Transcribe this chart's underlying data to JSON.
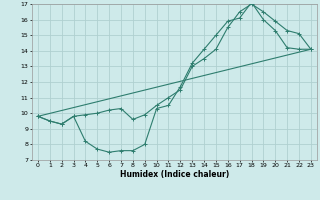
{
  "xlabel": "Humidex (Indice chaleur)",
  "bg_color": "#ceeaea",
  "grid_color": "#b0d0d0",
  "line_color": "#2e7d6e",
  "xlim": [
    -0.5,
    23.5
  ],
  "ylim": [
    7,
    17
  ],
  "xticks": [
    0,
    1,
    2,
    3,
    4,
    5,
    6,
    7,
    8,
    9,
    10,
    11,
    12,
    13,
    14,
    15,
    16,
    17,
    18,
    19,
    20,
    21,
    22,
    23
  ],
  "yticks": [
    7,
    8,
    9,
    10,
    11,
    12,
    13,
    14,
    15,
    16,
    17
  ],
  "line1_x": [
    0,
    1,
    2,
    3,
    4,
    5,
    6,
    7,
    8,
    9,
    10,
    11,
    12,
    13,
    14,
    15,
    16,
    17,
    18,
    19,
    20,
    21,
    22,
    23
  ],
  "line1_y": [
    9.8,
    9.5,
    9.3,
    9.8,
    8.2,
    7.7,
    7.5,
    7.6,
    7.6,
    8.0,
    10.3,
    10.5,
    11.7,
    13.2,
    14.1,
    15.0,
    15.9,
    16.1,
    17.1,
    16.0,
    15.3,
    14.2,
    14.1,
    14.1
  ],
  "line2_x": [
    0,
    1,
    2,
    3,
    4,
    5,
    6,
    7,
    8,
    9,
    10,
    11,
    12,
    13,
    14,
    15,
    16,
    17,
    18,
    19,
    20,
    21,
    22,
    23
  ],
  "line2_y": [
    9.8,
    9.5,
    9.3,
    9.8,
    9.9,
    10.0,
    10.2,
    10.3,
    9.6,
    9.9,
    10.5,
    11.0,
    11.5,
    13.0,
    13.5,
    14.1,
    15.5,
    16.5,
    17.0,
    16.5,
    15.9,
    15.3,
    15.1,
    14.1
  ],
  "line3_x": [
    0,
    23
  ],
  "line3_y": [
    9.8,
    14.1
  ]
}
